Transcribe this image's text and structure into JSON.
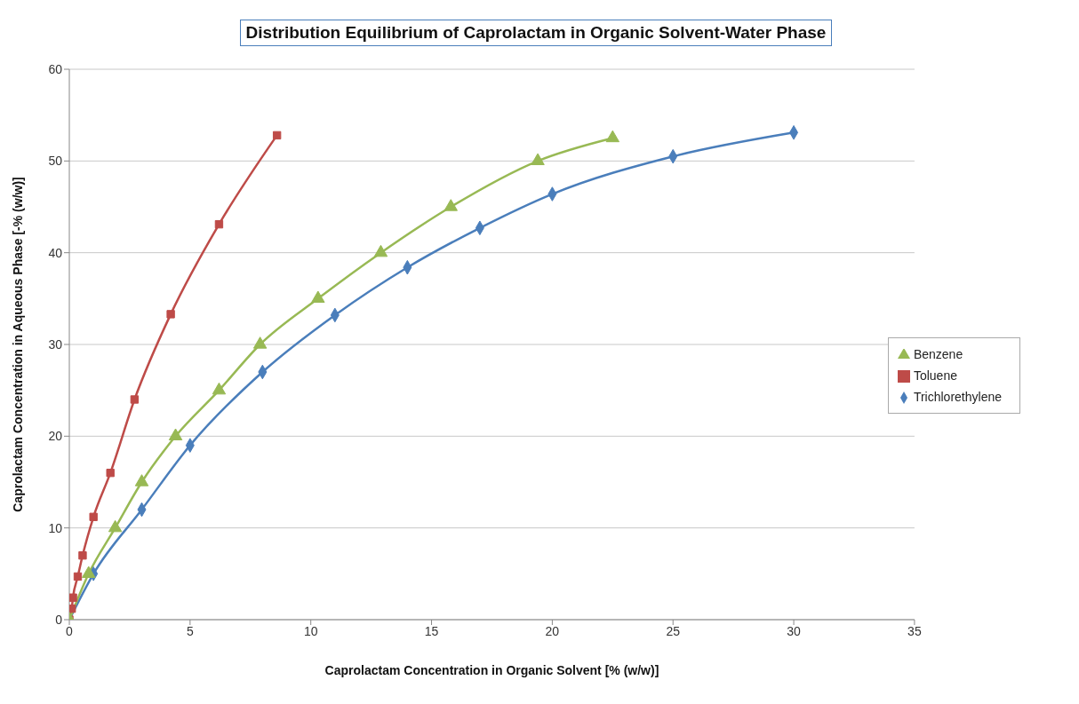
{
  "chart_data": {
    "type": "line",
    "title": "Distribution Equilibrium of Caprolactam in Organic Solvent-Water Phase",
    "xlabel": "Caprolactam Concentration in Organic Solvent [% (w/w)]",
    "ylabel": "Caprolactam Concentration in  Aqueous Phase [-% (w/w)]",
    "series": [
      {
        "name": "Trichlorethylene",
        "color": "#4a7ebb",
        "marker": "diamond",
        "x": [
          0,
          1,
          3,
          5,
          8,
          11,
          14,
          17,
          20,
          25,
          30
        ],
        "values": [
          0,
          5,
          12,
          19,
          27,
          33.2,
          38.4,
          42.7,
          46.4,
          50.5,
          53.1
        ]
      },
      {
        "name": "Toluene",
        "color": "#be4b48",
        "marker": "square",
        "x": [
          0,
          0.1,
          0.15,
          0.35,
          0.55,
          1,
          1.7,
          2.7,
          4.2,
          6.2,
          8.6
        ],
        "values": [
          0,
          1.2,
          2.4,
          4.7,
          7,
          11.2,
          16,
          24,
          33.3,
          43.1,
          52.8
        ]
      },
      {
        "name": "Benzene",
        "color": "#98b954",
        "marker": "triangle",
        "x": [
          0,
          0.8,
          1.9,
          3,
          4.4,
          6.2,
          7.9,
          10.3,
          12.9,
          15.8,
          19.4,
          22.5
        ],
        "values": [
          0,
          5,
          10,
          15,
          20,
          25,
          30,
          35,
          40,
          45,
          50,
          52.5
        ]
      }
    ],
    "xlim": [
      0,
      35
    ],
    "xticks": [
      0,
      5,
      10,
      15,
      20,
      25,
      30,
      35
    ],
    "ylim": [
      0,
      60
    ],
    "yticks": [
      0,
      10,
      20,
      30,
      40,
      50,
      60
    ],
    "grid": "y",
    "legend": "right",
    "line_style": "solid"
  }
}
